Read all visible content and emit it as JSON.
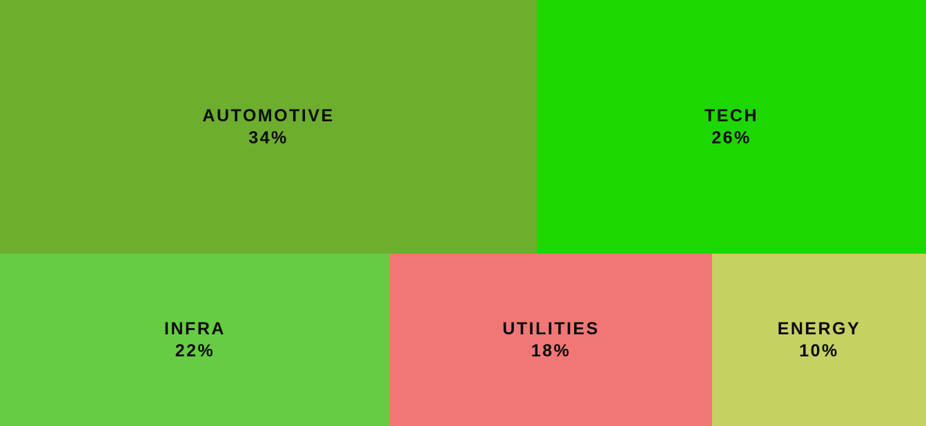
{
  "chart_data": {
    "type": "treemap",
    "title": "",
    "items": [
      {
        "label": "AUTOMOTIVE",
        "value": 34,
        "display": "34%",
        "color": "#6EAE2E"
      },
      {
        "label": "TECH",
        "value": 26,
        "display": "26%",
        "color": "#1CD800"
      },
      {
        "label": "INFRA",
        "value": 22,
        "display": "22%",
        "color": "#66CC44"
      },
      {
        "label": "UTILITIES",
        "value": 18,
        "display": "18%",
        "color": "#F17777"
      },
      {
        "label": "ENERGY",
        "value": 10,
        "display": "10%",
        "color": "#C6D163"
      }
    ]
  }
}
